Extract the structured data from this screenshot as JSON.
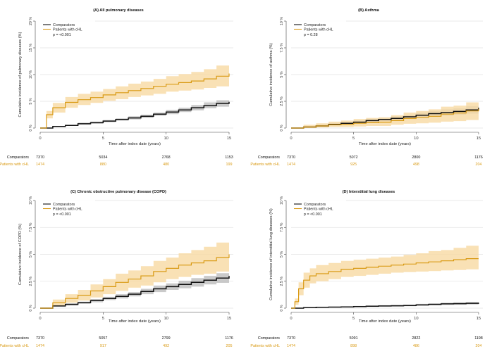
{
  "colors": {
    "comparators": "#111111",
    "patients": "#d99a14",
    "comparators_band": "#b8b8b8",
    "patients_band": "#f8d9a2",
    "grid": "#e3e3e3",
    "axis": "#444444"
  },
  "chart_data": [
    {
      "type": "line",
      "title": "(A) All pulmonary diseases",
      "xlabel": "Time after index date (years)",
      "ylabel": "Cumulative incidence of pulmonary diseases (%)",
      "xlim": [
        0,
        15
      ],
      "ylim": [
        0,
        20
      ],
      "xticks": [
        0,
        5,
        10,
        15
      ],
      "yticks": [
        0,
        5,
        10,
        15,
        20
      ],
      "ytick_labels": [
        "0 %",
        "5 %",
        "10 %",
        "15 %",
        "20 %"
      ],
      "grid": true,
      "legend": [
        "Comparators",
        "Patients with cHL"
      ],
      "legend_position": "top-left",
      "pvalue": "p = <0.001",
      "series": [
        {
          "name": "Comparators",
          "color": "#111111",
          "x": [
            0,
            1,
            2,
            3,
            4,
            5,
            6,
            7,
            8,
            9,
            10,
            11,
            12,
            13,
            14,
            15
          ],
          "y": [
            0,
            0.3,
            0.5,
            0.8,
            1.0,
            1.3,
            1.6,
            1.9,
            2.2,
            2.6,
            3.0,
            3.4,
            3.8,
            4.2,
            4.6,
            4.9
          ],
          "lower": [
            0,
            0.2,
            0.4,
            0.6,
            0.8,
            1.1,
            1.4,
            1.6,
            1.9,
            2.3,
            2.6,
            3.0,
            3.3,
            3.7,
            4.0,
            4.3
          ],
          "upper": [
            0,
            0.4,
            0.6,
            1.0,
            1.2,
            1.5,
            1.8,
            2.2,
            2.5,
            2.9,
            3.4,
            3.8,
            4.3,
            4.8,
            5.2,
            5.6
          ]
        },
        {
          "name": "Patients with cHL",
          "color": "#d99a14",
          "x": [
            0,
            0.5,
            1,
            2,
            3,
            4,
            5,
            6,
            7,
            8,
            9,
            10,
            11,
            12,
            13,
            14,
            15
          ],
          "y": [
            0,
            2.5,
            3.8,
            4.8,
            5.3,
            5.7,
            6.2,
            6.6,
            7.0,
            7.4,
            7.8,
            8.2,
            8.5,
            8.8,
            9.2,
            9.7,
            10.2
          ],
          "lower": [
            0,
            1.8,
            2.9,
            3.8,
            4.3,
            4.7,
            5.1,
            5.4,
            5.8,
            6.1,
            6.4,
            6.8,
            7.0,
            7.2,
            7.5,
            7.8,
            8.1
          ],
          "upper": [
            0,
            3.2,
            4.7,
            5.8,
            6.4,
            6.8,
            7.3,
            7.8,
            8.3,
            8.7,
            9.2,
            9.7,
            10.1,
            10.5,
            11.0,
            11.7,
            12.3
          ]
        }
      ],
      "risk_table": {
        "rows": [
          {
            "label": "Comparators",
            "values": [
              "7370",
              "5034",
              "2768",
              "1153"
            ]
          },
          {
            "label": "Patients with cHL",
            "values": [
              "1474",
              "880",
              "480",
              "199"
            ]
          }
        ]
      }
    },
    {
      "type": "line",
      "title": "(B) Asthma",
      "xlabel": "Time after index date (years)",
      "ylabel": "Cumulative incidence of asthma (%)",
      "xlim": [
        0,
        15
      ],
      "ylim": [
        0,
        10
      ],
      "xticks": [
        0,
        5,
        10,
        15
      ],
      "yticks": [
        0,
        2.5,
        5,
        7.5,
        10
      ],
      "ytick_labels": [
        "0 %",
        "2.5 %",
        "5 %",
        "7.5 %",
        "10 %"
      ],
      "grid": true,
      "legend": [
        "Comparators",
        "Patients with cHL"
      ],
      "legend_position": "top-left",
      "pvalue": "p = 0.28",
      "series": [
        {
          "name": "Comparators",
          "color": "#111111",
          "x": [
            0,
            1,
            2,
            3,
            4,
            5,
            6,
            7,
            8,
            9,
            10,
            11,
            12,
            13,
            14,
            15
          ],
          "y": [
            0,
            0.1,
            0.2,
            0.35,
            0.45,
            0.55,
            0.7,
            0.8,
            0.9,
            1.05,
            1.2,
            1.35,
            1.45,
            1.55,
            1.7,
            1.9
          ],
          "lower": [
            0,
            0.05,
            0.15,
            0.25,
            0.35,
            0.45,
            0.55,
            0.65,
            0.75,
            0.85,
            0.95,
            1.1,
            1.15,
            1.25,
            1.35,
            1.5
          ],
          "upper": [
            0,
            0.15,
            0.3,
            0.45,
            0.55,
            0.7,
            0.85,
            0.95,
            1.1,
            1.25,
            1.45,
            1.6,
            1.75,
            1.85,
            2.05,
            2.3
          ]
        },
        {
          "name": "Patients with cHL",
          "color": "#d99a14",
          "x": [
            0,
            1,
            2,
            3,
            4,
            5,
            6,
            7,
            8,
            9,
            10,
            11,
            12,
            13,
            14,
            15
          ],
          "y": [
            0,
            0.1,
            0.2,
            0.3,
            0.35,
            0.45,
            0.5,
            0.55,
            0.7,
            0.9,
            1.0,
            1.1,
            1.3,
            1.4,
            1.6,
            1.8
          ],
          "lower": [
            0,
            0.0,
            0.05,
            0.1,
            0.1,
            0.15,
            0.2,
            0.2,
            0.3,
            0.4,
            0.45,
            0.5,
            0.6,
            0.65,
            0.75,
            0.9
          ],
          "upper": [
            0,
            0.3,
            0.45,
            0.6,
            0.7,
            0.85,
            0.95,
            1.0,
            1.2,
            1.45,
            1.6,
            1.75,
            2.0,
            2.1,
            2.4,
            2.7
          ]
        }
      ],
      "risk_table": {
        "rows": [
          {
            "label": "Comparators",
            "values": [
              "7370",
              "5072",
              "2800",
              "1176"
            ]
          },
          {
            "label": "Patients with cHL",
            "values": [
              "1474",
              "925",
              "498",
              "204"
            ]
          }
        ]
      }
    },
    {
      "type": "line",
      "title": "(C) Chronic obstructive pulmonary disease (COPD)",
      "xlabel": "Time after index date (years)",
      "ylabel": "Cumulative incidence of COPD (%)",
      "xlim": [
        0,
        15
      ],
      "ylim": [
        0,
        10
      ],
      "xticks": [
        0,
        5,
        10,
        15
      ],
      "yticks": [
        0,
        2.5,
        5,
        7.5,
        10
      ],
      "ytick_labels": [
        "0 %",
        "2.5 %",
        "5 %",
        "7.5 %",
        "10 %"
      ],
      "grid": true,
      "legend": [
        "Comparators",
        "Patients with cHL"
      ],
      "legend_position": "top-left",
      "pvalue": "p = <0.001",
      "series": [
        {
          "name": "Comparators",
          "color": "#111111",
          "x": [
            0,
            1,
            2,
            3,
            4,
            5,
            6,
            7,
            8,
            9,
            10,
            11,
            12,
            13,
            14,
            15
          ],
          "y": [
            0,
            0.2,
            0.35,
            0.5,
            0.7,
            0.9,
            1.1,
            1.3,
            1.55,
            1.8,
            2.0,
            2.2,
            2.4,
            2.6,
            2.8,
            3.0
          ],
          "lower": [
            0,
            0.15,
            0.25,
            0.4,
            0.55,
            0.75,
            0.9,
            1.1,
            1.3,
            1.5,
            1.7,
            1.85,
            2.0,
            2.2,
            2.35,
            2.55
          ],
          "upper": [
            0,
            0.25,
            0.45,
            0.6,
            0.85,
            1.05,
            1.3,
            1.5,
            1.8,
            2.1,
            2.3,
            2.55,
            2.8,
            3.0,
            3.25,
            3.5
          ]
        },
        {
          "name": "Patients with cHL",
          "color": "#d99a14",
          "x": [
            0,
            1,
            2,
            3,
            4,
            5,
            6,
            7,
            8,
            9,
            10,
            11,
            12,
            13,
            14,
            15
          ],
          "y": [
            0,
            0.5,
            0.9,
            1.2,
            1.6,
            2.0,
            2.4,
            2.7,
            3.0,
            3.4,
            3.7,
            4.0,
            4.2,
            4.4,
            4.7,
            5.0
          ],
          "lower": [
            0,
            0.2,
            0.5,
            0.7,
            1.0,
            1.3,
            1.6,
            1.9,
            2.1,
            2.4,
            2.7,
            2.9,
            3.1,
            3.2,
            3.4,
            3.6
          ],
          "upper": [
            0,
            0.8,
            1.3,
            1.7,
            2.2,
            2.7,
            3.2,
            3.5,
            3.9,
            4.4,
            4.7,
            5.1,
            5.4,
            5.7,
            6.1,
            6.6
          ]
        }
      ],
      "risk_table": {
        "rows": [
          {
            "label": "Comparators",
            "values": [
              "7370",
              "5057",
              "2799",
              "1176"
            ]
          },
          {
            "label": "Patients with cHL",
            "values": [
              "1474",
              "917",
              "492",
              "205"
            ]
          }
        ]
      }
    },
    {
      "type": "line",
      "title": "(D) Interstitial lung diseases",
      "xlabel": "Time after index date (years)",
      "ylabel": "Cumulative incidence of interstitial lung diseases (%)",
      "xlim": [
        0,
        15
      ],
      "ylim": [
        0,
        10
      ],
      "xticks": [
        0,
        5,
        10,
        15
      ],
      "yticks": [
        0,
        2.5,
        5,
        7.5,
        10
      ],
      "ytick_labels": [
        "0 %",
        "2.5 %",
        "5 %",
        "7.5 %",
        "10 %"
      ],
      "grid": true,
      "legend": [
        "Comparators",
        "Patients with cHL"
      ],
      "legend_position": "top-left",
      "pvalue": "p = <0.001",
      "series": [
        {
          "name": "Comparators",
          "color": "#111111",
          "x": [
            0,
            1,
            2,
            3,
            4,
            5,
            6,
            7,
            8,
            9,
            10,
            11,
            12,
            13,
            14,
            15
          ],
          "y": [
            0,
            0.05,
            0.08,
            0.1,
            0.12,
            0.15,
            0.18,
            0.2,
            0.22,
            0.25,
            0.3,
            0.35,
            0.4,
            0.42,
            0.45,
            0.5
          ],
          "lower": [
            0,
            0.02,
            0.04,
            0.06,
            0.08,
            0.1,
            0.12,
            0.14,
            0.15,
            0.18,
            0.22,
            0.26,
            0.3,
            0.32,
            0.34,
            0.37
          ],
          "upper": [
            0,
            0.08,
            0.12,
            0.15,
            0.17,
            0.2,
            0.25,
            0.27,
            0.3,
            0.33,
            0.4,
            0.45,
            0.5,
            0.55,
            0.58,
            0.65
          ]
        },
        {
          "name": "Patients with cHL",
          "color": "#d99a14",
          "x": [
            0,
            0.3,
            0.6,
            1,
            1.5,
            2,
            3,
            4,
            5,
            6,
            7,
            8,
            9,
            10,
            11,
            12,
            13,
            14,
            15
          ],
          "y": [
            0,
            0.6,
            1.8,
            2.6,
            3.0,
            3.2,
            3.4,
            3.6,
            3.7,
            3.8,
            3.9,
            4.0,
            4.1,
            4.2,
            4.3,
            4.4,
            4.5,
            4.6,
            4.6
          ],
          "lower": [
            0,
            0.3,
            1.2,
            1.9,
            2.3,
            2.5,
            2.7,
            2.9,
            3.0,
            3.1,
            3.2,
            3.3,
            3.35,
            3.4,
            3.45,
            3.5,
            3.55,
            3.6,
            3.6
          ],
          "upper": [
            0,
            0.9,
            2.4,
            3.3,
            3.7,
            4.0,
            4.2,
            4.4,
            4.5,
            4.6,
            4.7,
            4.8,
            4.95,
            5.1,
            5.3,
            5.4,
            5.6,
            5.8,
            5.9
          ]
        }
      ],
      "risk_table": {
        "rows": [
          {
            "label": "Comparators",
            "values": [
              "7370",
              "5091",
              "2822",
              "1198"
            ]
          },
          {
            "label": "Patients with cHL",
            "values": [
              "1474",
              "898",
              "486",
              "204"
            ]
          }
        ]
      }
    }
  ]
}
